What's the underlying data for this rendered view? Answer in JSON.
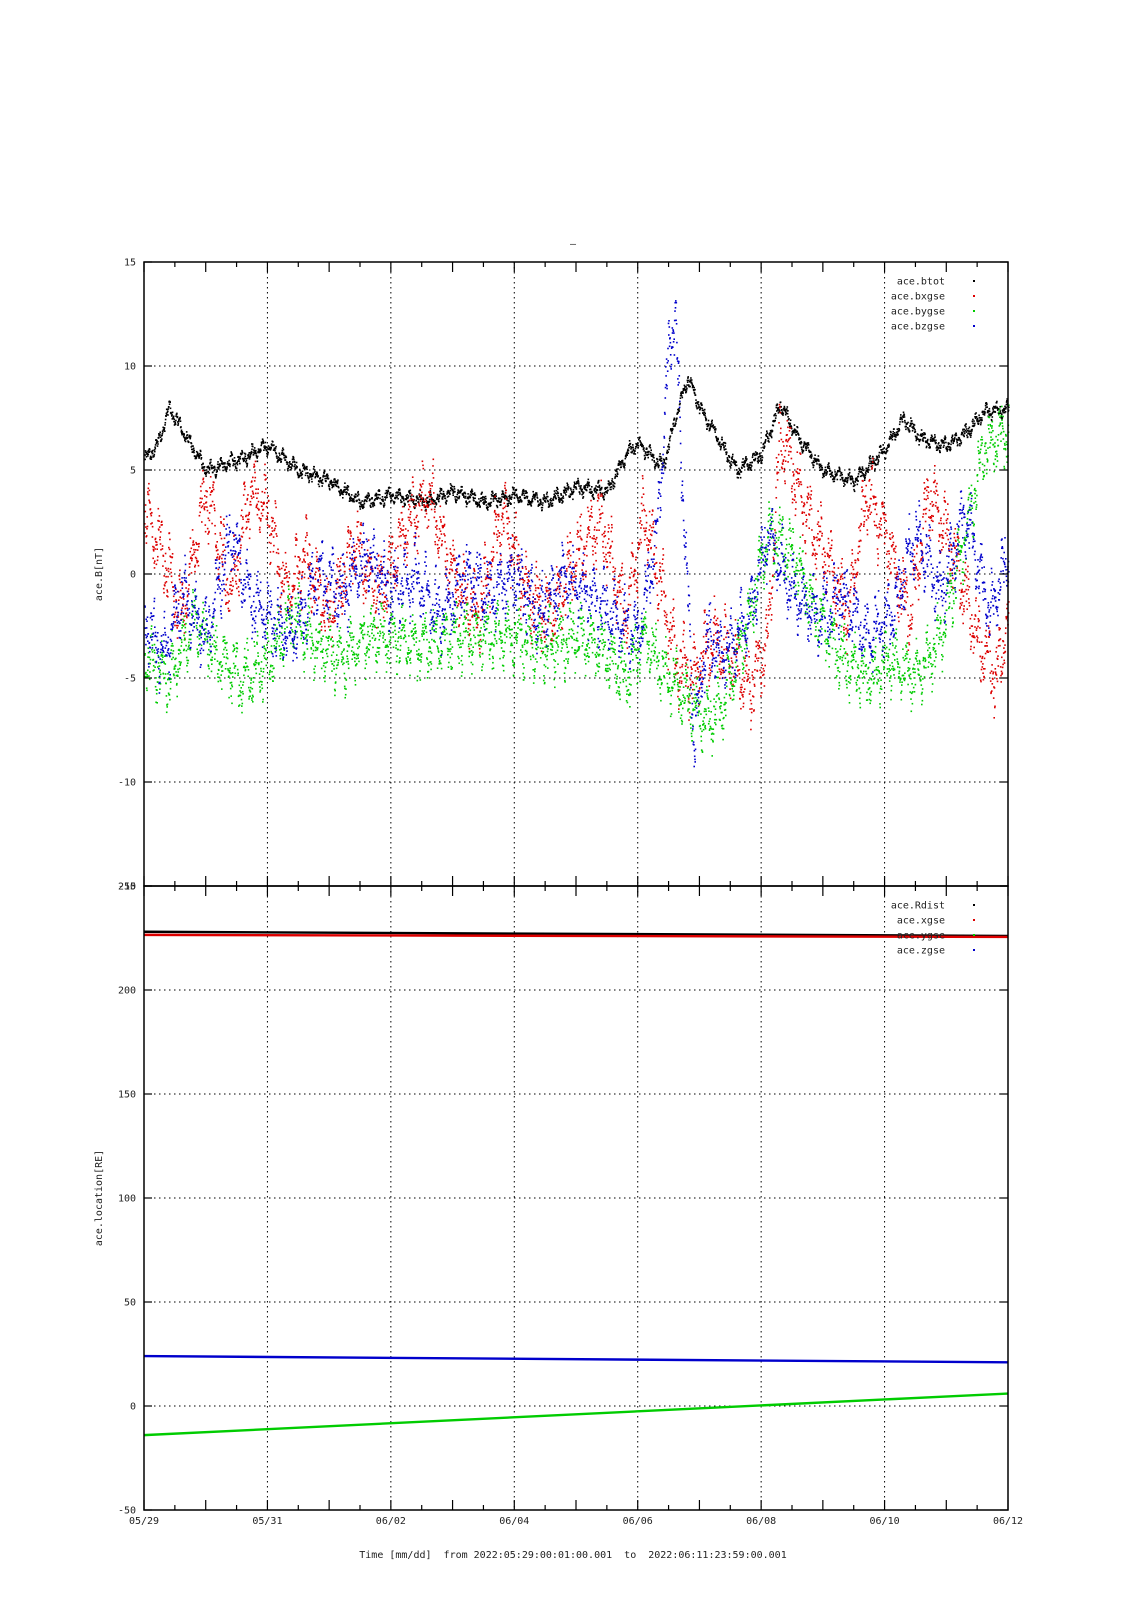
{
  "title_mark": "–",
  "footer": {
    "caption": "Time [mm/dd]  from 2022:05:29:00:01:00.001  to  2022:06:11:23:59:00.001"
  },
  "chart_data": [
    {
      "type": "scatter",
      "ylabel": "ace.B[nT]",
      "ylim": [
        -15,
        15
      ],
      "yticks": [
        15,
        10,
        5,
        0,
        -5,
        -10,
        -15
      ],
      "xlim_days": [
        0,
        14
      ],
      "xtick_labels": [
        "05/29",
        "05/31",
        "06/02",
        "06/04",
        "06/06",
        "06/08",
        "06/10",
        "06/12"
      ],
      "xtick_days": [
        0,
        2,
        4,
        6,
        8,
        10,
        12,
        14
      ],
      "grid": true,
      "legend_position": "top-right",
      "series": [
        {
          "name": "ace.btot",
          "color": "#000000",
          "keypoints": [
            [
              0,
              5.5
            ],
            [
              0.2,
              6.2
            ],
            [
              0.4,
              8.0
            ],
            [
              0.7,
              6.5
            ],
            [
              1.0,
              5.0
            ],
            [
              1.5,
              5.5
            ],
            [
              2.0,
              6.2
            ],
            [
              2.5,
              5.0
            ],
            [
              3.0,
              4.5
            ],
            [
              3.5,
              3.5
            ],
            [
              4.0,
              3.8
            ],
            [
              4.6,
              3.5
            ],
            [
              5.0,
              4.0
            ],
            [
              5.5,
              3.5
            ],
            [
              6.0,
              3.8
            ],
            [
              6.5,
              3.5
            ],
            [
              7.0,
              4.2
            ],
            [
              7.5,
              4.0
            ],
            [
              7.8,
              5.8
            ],
            [
              8.0,
              6.3
            ],
            [
              8.4,
              5.2
            ],
            [
              8.6,
              7.5
            ],
            [
              8.8,
              9.5
            ],
            [
              9.0,
              8.0
            ],
            [
              9.3,
              6.5
            ],
            [
              9.6,
              5.0
            ],
            [
              10.0,
              5.8
            ],
            [
              10.3,
              8.2
            ],
            [
              10.6,
              6.5
            ],
            [
              11.0,
              5.0
            ],
            [
              11.5,
              4.5
            ],
            [
              12.0,
              6.0
            ],
            [
              12.3,
              7.5
            ],
            [
              12.6,
              6.5
            ],
            [
              13.0,
              6.2
            ],
            [
              13.3,
              6.8
            ],
            [
              13.6,
              7.8
            ],
            [
              14.0,
              8.0
            ]
          ],
          "noise": 0.35
        },
        {
          "name": "ace.bxgse",
          "color": "#dd0000",
          "keypoints": [
            [
              0,
              3
            ],
            [
              0.3,
              1
            ],
            [
              0.6,
              -2
            ],
            [
              1.0,
              4
            ],
            [
              1.4,
              -1
            ],
            [
              1.7,
              4
            ],
            [
              2.0,
              3
            ],
            [
              2.3,
              -1
            ],
            [
              2.6,
              1
            ],
            [
              3.0,
              -2
            ],
            [
              3.4,
              1.5
            ],
            [
              3.8,
              -1
            ],
            [
              4.2,
              2
            ],
            [
              4.6,
              4
            ],
            [
              5.0,
              0
            ],
            [
              5.4,
              -2
            ],
            [
              5.8,
              3
            ],
            [
              6.2,
              -1
            ],
            [
              6.6,
              -2
            ],
            [
              7.0,
              1
            ],
            [
              7.4,
              2.5
            ],
            [
              7.8,
              -2
            ],
            [
              8.1,
              3
            ],
            [
              8.4,
              -1
            ],
            [
              8.6,
              -4
            ],
            [
              8.9,
              -5
            ],
            [
              9.2,
              -3
            ],
            [
              9.5,
              -4
            ],
            [
              9.8,
              -5.5
            ],
            [
              10.1,
              -3
            ],
            [
              10.3,
              7
            ],
            [
              10.6,
              4
            ],
            [
              11.0,
              1
            ],
            [
              11.4,
              -2
            ],
            [
              11.7,
              4
            ],
            [
              12.0,
              2
            ],
            [
              12.4,
              -2
            ],
            [
              12.7,
              4
            ],
            [
              13.1,
              1
            ],
            [
              13.5,
              -3
            ],
            [
              13.8,
              -5
            ],
            [
              14.0,
              -2
            ]
          ],
          "noise": 1.6
        },
        {
          "name": "ace.bygse",
          "color": "#00cc00",
          "keypoints": [
            [
              0,
              -4
            ],
            [
              0.4,
              -5
            ],
            [
              0.8,
              -2
            ],
            [
              1.2,
              -4
            ],
            [
              1.6,
              -5
            ],
            [
              2.0,
              -4
            ],
            [
              2.4,
              -2
            ],
            [
              2.8,
              -3.5
            ],
            [
              3.2,
              -4
            ],
            [
              3.6,
              -3
            ],
            [
              4.0,
              -3
            ],
            [
              4.5,
              -3.5
            ],
            [
              5.0,
              -3
            ],
            [
              5.5,
              -3
            ],
            [
              6.0,
              -3
            ],
            [
              6.5,
              -3.5
            ],
            [
              7.0,
              -3
            ],
            [
              7.4,
              -3.5
            ],
            [
              7.8,
              -5
            ],
            [
              8.1,
              -3
            ],
            [
              8.5,
              -5
            ],
            [
              8.8,
              -6
            ],
            [
              9.1,
              -7
            ],
            [
              9.4,
              -6
            ],
            [
              9.8,
              -2
            ],
            [
              10.1,
              2
            ],
            [
              10.5,
              1
            ],
            [
              10.9,
              -2
            ],
            [
              11.3,
              -4
            ],
            [
              11.7,
              -5
            ],
            [
              12.1,
              -4
            ],
            [
              12.5,
              -5
            ],
            [
              12.9,
              -3
            ],
            [
              13.3,
              2
            ],
            [
              13.6,
              6
            ],
            [
              14.0,
              7
            ]
          ],
          "noise": 1.4
        },
        {
          "name": "ace.bzgse",
          "color": "#0000cc",
          "keypoints": [
            [
              0,
              -2
            ],
            [
              0.3,
              -4
            ],
            [
              0.6,
              -1
            ],
            [
              1.0,
              -3
            ],
            [
              1.4,
              2
            ],
            [
              1.7,
              -1
            ],
            [
              2.0,
              -2
            ],
            [
              2.4,
              -3
            ],
            [
              2.8,
              0
            ],
            [
              3.2,
              -1
            ],
            [
              3.6,
              1
            ],
            [
              4.0,
              -1
            ],
            [
              4.4,
              0
            ],
            [
              4.8,
              -2
            ],
            [
              5.2,
              0
            ],
            [
              5.6,
              -1
            ],
            [
              6.0,
              0
            ],
            [
              6.4,
              -2
            ],
            [
              6.8,
              0
            ],
            [
              7.2,
              -1
            ],
            [
              7.6,
              -2
            ],
            [
              8.0,
              -3
            ],
            [
              8.3,
              2
            ],
            [
              8.5,
              11
            ],
            [
              8.6,
              12.5
            ],
            [
              8.7,
              5
            ],
            [
              8.8,
              -1
            ],
            [
              8.9,
              -8
            ],
            [
              9.1,
              -3
            ],
            [
              9.4,
              -4
            ],
            [
              9.8,
              -2
            ],
            [
              10.1,
              2
            ],
            [
              10.5,
              -1
            ],
            [
              10.9,
              -2
            ],
            [
              11.3,
              -1
            ],
            [
              11.7,
              -3
            ],
            [
              12.1,
              -2
            ],
            [
              12.5,
              2
            ],
            [
              12.9,
              -1
            ],
            [
              13.3,
              3
            ],
            [
              13.7,
              -2
            ],
            [
              14.0,
              1
            ]
          ],
          "noise": 1.5
        }
      ]
    },
    {
      "type": "scatter",
      "ylabel": "ace.location[RE]",
      "ylim": [
        -50,
        250
      ],
      "yticks": [
        250,
        200,
        150,
        100,
        50,
        0,
        -50
      ],
      "xlim_days": [
        0,
        14
      ],
      "xtick_labels": [
        "05/29",
        "05/31",
        "06/02",
        "06/04",
        "06/06",
        "06/08",
        "06/10",
        "06/12"
      ],
      "xtick_days": [
        0,
        2,
        4,
        6,
        8,
        10,
        12,
        14
      ],
      "grid": true,
      "legend_position": "top-right",
      "series": [
        {
          "name": "ace.Rdist",
          "color": "#000000",
          "start": 228,
          "end": 226
        },
        {
          "name": "ace.xgse",
          "color": "#dd0000",
          "start": 226.5,
          "end": 225.5
        },
        {
          "name": "ace.ygse",
          "color": "#00cc00",
          "start": -14,
          "end": 6
        },
        {
          "name": "ace.zgse",
          "color": "#0000cc",
          "start": 24,
          "end": 21
        }
      ]
    }
  ]
}
